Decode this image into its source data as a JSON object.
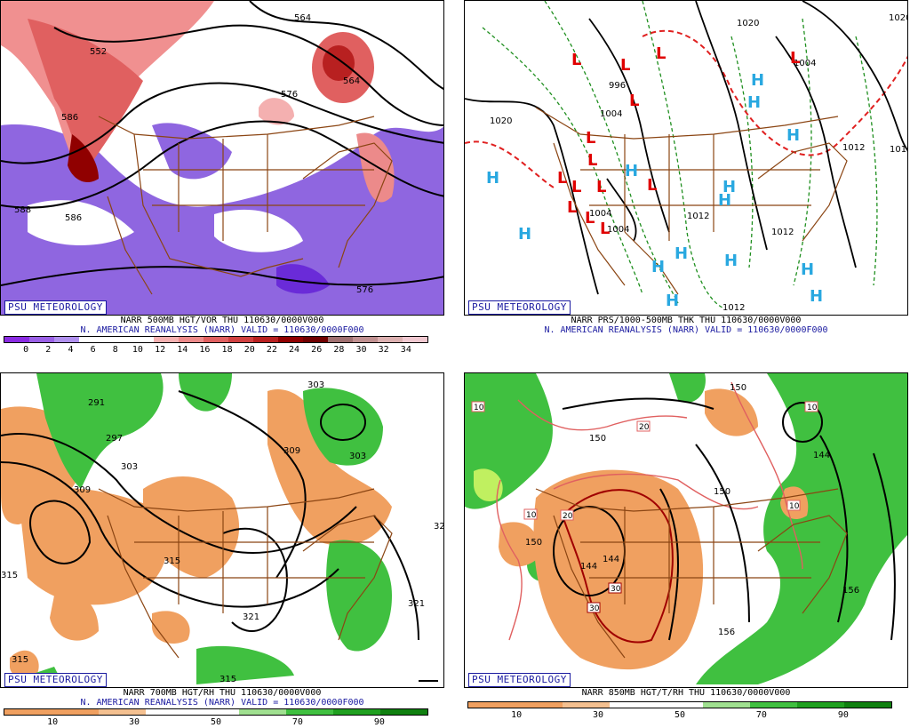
{
  "panels": [
    {
      "id": "p1",
      "watermark": "PSU METEOROLOGY",
      "title": "NARR 500MB HGT/VOR THU 110630/0000V000",
      "subtitle": "N. AMERICAN REANALYSIS (NARR) VALID = 110630/0000F000",
      "colorbar_colors": [
        "#8a2be2",
        "#9a60e6",
        "#b090ee",
        "#ffffff",
        "#ffffff",
        "#ffffff",
        "#f4b0b0",
        "#ec8a8a",
        "#e06060",
        "#d04040",
        "#b82020",
        "#900000",
        "#700000",
        "#a07070",
        "#c09090",
        "#dcb0b0",
        "#f0c8d0"
      ],
      "ticks": [
        "0",
        "2",
        "4",
        "6",
        "8",
        "10",
        "12",
        "14",
        "16",
        "18",
        "20",
        "22",
        "24",
        "26",
        "28",
        "30",
        "32",
        "34"
      ],
      "contour_labels": [
        "552",
        "564",
        "576",
        "586",
        "586",
        "588",
        "564",
        "576"
      ]
    },
    {
      "id": "p2",
      "watermark": "PSU METEOROLOGY",
      "title": "NARR PRS/1000-500MB THK THU 110630/0000V000",
      "subtitle": "N. AMERICAN REANALYSIS (NARR) VALID = 110630/0000F000",
      "contour_labels": [
        "1020",
        "1020",
        "1012",
        "1012",
        "996",
        "1004",
        "1004",
        "1004",
        "1012",
        "1012",
        "1012",
        "1004",
        "1020"
      ],
      "high_symbol": "H",
      "low_symbol": "L"
    },
    {
      "id": "p3",
      "watermark": "PSU METEOROLOGY",
      "title": "NARR 700MB HGT/RH THU 110630/0000V000",
      "subtitle": "N. AMERICAN REANALYSIS (NARR) VALID = 110630/0000F000",
      "colorbar_colors": [
        "#f0a060",
        "#f0a060",
        "#f4c090",
        "#ffffff",
        "#ffffff",
        "#a0e090",
        "#40c040",
        "#20a020",
        "#108010"
      ],
      "ticks": [
        "10",
        "30",
        "50",
        "70",
        "90"
      ],
      "contour_labels": [
        "291",
        "297",
        "303",
        "309",
        "315",
        "315",
        "321",
        "321",
        "315",
        "315",
        "303",
        "309",
        "303",
        "32"
      ]
    },
    {
      "id": "p4",
      "watermark": "PSU METEOROLOGY",
      "title": "NARR 850MB HGT/T/RH THU 110630/0000V000",
      "subtitle": "",
      "colorbar_colors": [
        "#f0a060",
        "#f0a060",
        "#f4c090",
        "#ffffff",
        "#ffffff",
        "#a0e090",
        "#40c040",
        "#20a020",
        "#108010"
      ],
      "ticks": [
        "10",
        "30",
        "50",
        "70",
        "90"
      ],
      "contour_labels": [
        "150",
        "150",
        "144",
        "144",
        "150",
        "150",
        "156",
        "156",
        "144"
      ],
      "temp_labels": [
        "10",
        "20",
        "30",
        "30",
        "10",
        "10",
        "20",
        "10"
      ]
    }
  ]
}
